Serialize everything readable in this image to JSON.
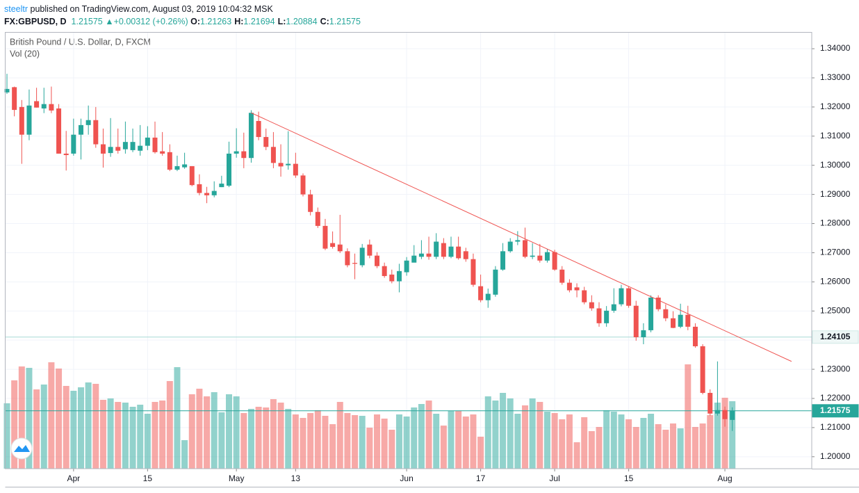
{
  "header": {
    "author": "steeltr",
    "published": "published on TradingView.com, August 03, 2019 10:04:32 MSK",
    "symbol": "FX:GBPUSD, D",
    "last": "1.21575",
    "arrow": "▲",
    "change": "+0.00312 (+0.26%)",
    "ohlc": [
      {
        "label": "O:",
        "value": "1.21263"
      },
      {
        "label": "H:",
        "value": "1.21694"
      },
      {
        "label": "L:",
        "value": "1.20884"
      },
      {
        "label": "C:",
        "value": "1.21575"
      }
    ]
  },
  "chart_data": {
    "type": "candlestick",
    "title": "British Pound / U.S. Dollar, D, FXCM",
    "volume_title": "Vol (20)",
    "up_color": "#26a69a",
    "down_color": "#ef5350",
    "ylim": [
      1.1959,
      1.3455
    ],
    "yticks": [
      {
        "value": 1.2,
        "label": "1.20000"
      },
      {
        "value": 1.21,
        "label": "1.21000"
      },
      {
        "value": 1.22,
        "label": "1.22000"
      },
      {
        "value": 1.23,
        "label": "1.23000"
      },
      {
        "value": 1.24,
        "label": "1.24000"
      },
      {
        "value": 1.25,
        "label": "1.25000"
      },
      {
        "value": 1.26,
        "label": "1.26000"
      },
      {
        "value": 1.27,
        "label": "1.27000"
      },
      {
        "value": 1.28,
        "label": "1.28000"
      },
      {
        "value": 1.29,
        "label": "1.29000"
      },
      {
        "value": 1.3,
        "label": "1.30000"
      },
      {
        "value": 1.31,
        "label": "1.31000"
      },
      {
        "value": 1.32,
        "label": "1.32000"
      },
      {
        "value": 1.33,
        "label": "1.33000"
      },
      {
        "value": 1.34,
        "label": "1.34000"
      }
    ],
    "xticks": [
      {
        "value": 9,
        "label": "Apr"
      },
      {
        "value": 19,
        "label": "15"
      },
      {
        "value": 31,
        "label": "May"
      },
      {
        "value": 39,
        "label": "13"
      },
      {
        "value": 54,
        "label": "Jun"
      },
      {
        "value": 64,
        "label": "17"
      },
      {
        "value": 74,
        "label": "Jul"
      },
      {
        "value": 84,
        "label": "15"
      },
      {
        "value": 97,
        "label": "Aug"
      }
    ],
    "open": [
      1.325,
      1.3268,
      1.32,
      1.3105,
      1.322,
      1.3195,
      1.321,
      1.3195,
      1.304,
      1.304,
      1.3105,
      1.3138,
      1.3155,
      1.3072,
      1.3042,
      1.3063,
      1.3055,
      1.3052,
      1.305,
      1.3067,
      1.3095,
      1.3048,
      1.3045,
      1.2985,
      1.2993,
      1.2997,
      1.2935,
      1.2905,
      1.2897,
      1.2925,
      1.293,
      1.304,
      1.3048,
      1.3025,
      1.3152,
      1.3097,
      1.3063,
      1.3008,
      1.3,
      1.3005,
      1.2965,
      1.29,
      1.284,
      1.2792,
      1.2733,
      1.2728,
      1.2705,
      1.2665,
      1.2657,
      1.2728,
      1.269,
      1.2654,
      1.2625,
      1.2602,
      1.2633,
      1.2666,
      1.2686,
      1.2697,
      1.2686,
      1.2733,
      1.2686,
      1.2721,
      1.2705,
      1.2678,
      1.2585,
      1.2537,
      1.2556,
      1.2642,
      1.2705,
      1.2738,
      1.2743,
      1.2686,
      1.269,
      1.2673,
      1.2702,
      1.2642,
      1.2597,
      1.2581,
      1.2571,
      1.253,
      1.2509,
      1.2458,
      1.2501,
      1.2523,
      1.2578,
      1.2518,
      1.241,
      1.2434,
      1.2546,
      1.2506,
      1.2475,
      1.2446,
      1.2487,
      1.2446,
      1.2379,
      1.2219,
      1.2148,
      1.216,
      1.21263
    ],
    "high": [
      1.3314,
      1.327,
      1.3224,
      1.326,
      1.3266,
      1.3266,
      1.327,
      1.321,
      1.3118,
      1.316,
      1.316,
      1.3205,
      1.32,
      1.3126,
      1.3162,
      1.3126,
      1.315,
      1.3126,
      1.3138,
      1.3134,
      1.315,
      1.3114,
      1.3072,
      1.3033,
      1.3043,
      1.2997,
      1.2969,
      1.2926,
      1.2945,
      1.2964,
      1.3081,
      1.3127,
      1.3112,
      1.3189,
      1.3184,
      1.3126,
      1.3114,
      1.3072,
      1.3117,
      1.3043,
      1.2972,
      1.2916,
      1.2855,
      1.2816,
      1.2773,
      1.283,
      1.2715,
      1.2697,
      1.273,
      1.2745,
      1.2702,
      1.2666,
      1.2642,
      1.2662,
      1.2685,
      1.2726,
      1.2743,
      1.2755,
      1.2767,
      1.275,
      1.2755,
      1.2755,
      1.2717,
      1.2697,
      1.2625,
      1.2577,
      1.2654,
      1.2733,
      1.275,
      1.2774,
      1.2786,
      1.2733,
      1.273,
      1.2712,
      1.271,
      1.2654,
      1.2609,
      1.2595,
      1.2583,
      1.2554,
      1.253,
      1.2517,
      1.2578,
      1.259,
      1.2585,
      1.2535,
      1.2458,
      1.2554,
      1.2554,
      1.2523,
      1.2499,
      1.2525,
      1.2518,
      1.2458,
      1.2386,
      1.2231,
      1.2327,
      1.2172,
      1.21694
    ],
    "low": [
      1.3245,
      1.3168,
      1.3005,
      1.3086,
      1.3198,
      1.3179,
      1.3179,
      1.304,
      1.2982,
      1.3033,
      1.302,
      1.3105,
      1.306,
      1.2992,
      1.3029,
      1.304,
      1.304,
      1.3045,
      1.3033,
      1.3052,
      1.304,
      1.3033,
      1.298,
      1.298,
      1.2988,
      1.2928,
      1.2897,
      1.287,
      1.289,
      1.2925,
      1.2925,
      1.3026,
      1.299,
      1.3009,
      1.3086,
      1.3052,
      1.299,
      1.2961,
      1.2985,
      1.2957,
      1.2893,
      1.2828,
      1.2785,
      1.2709,
      1.2714,
      1.2699,
      1.265,
      1.2609,
      1.265,
      1.2681,
      1.2647,
      1.2614,
      1.2595,
      1.2564,
      1.2621,
      1.2678,
      1.2678,
      1.2676,
      1.2678,
      1.2678,
      1.2681,
      1.2676,
      1.2669,
      1.2583,
      1.253,
      1.2511,
      1.2549,
      1.2638,
      1.27,
      1.2726,
      1.2681,
      1.2678,
      1.2666,
      1.2666,
      1.2638,
      1.259,
      1.2564,
      1.2547,
      1.2523,
      1.2501,
      1.2446,
      1.2446,
      1.2494,
      1.2516,
      1.2511,
      1.2398,
      1.2386,
      1.2427,
      1.2499,
      1.2465,
      1.2441,
      1.2441,
      1.2434,
      1.2374,
      1.2214,
      1.2141,
      1.2141,
      1.2103,
      1.20884
    ],
    "close": [
      1.3262,
      1.319,
      1.3105,
      1.3205,
      1.3198,
      1.321,
      1.3188,
      1.304,
      1.3035,
      1.3105,
      1.3138,
      1.3155,
      1.3072,
      1.304,
      1.3063,
      1.305,
      1.308,
      1.308,
      1.3067,
      1.3095,
      1.3045,
      1.304,
      1.2985,
      1.2997,
      1.3003,
      1.2932,
      1.2905,
      1.2897,
      1.2912,
      1.2937,
      1.304,
      1.3048,
      1.3025,
      1.318,
      1.3097,
      1.3063,
      1.3008,
      1.2996,
      1.3005,
      1.2965,
      1.29,
      1.284,
      1.2792,
      1.2714,
      1.272,
      1.2705,
      1.2657,
      1.2662,
      1.2717,
      1.269,
      1.2654,
      1.262,
      1.2602,
      1.2637,
      1.2673,
      1.269,
      1.2697,
      1.2686,
      1.2738,
      1.2686,
      1.2721,
      1.2681,
      1.2678,
      1.259,
      1.2537,
      1.2559,
      1.2642,
      1.2705,
      1.2738,
      1.2743,
      1.2686,
      1.269,
      1.2673,
      1.2702,
      1.2642,
      1.2597,
      1.2571,
      1.2571,
      1.253,
      1.2509,
      1.2458,
      1.2501,
      1.2523,
      1.2578,
      1.2518,
      1.241,
      1.2434,
      1.2546,
      1.2506,
      1.2475,
      1.2442,
      1.2487,
      1.2446,
      1.2379,
      1.2219,
      1.2148,
      1.216,
      1.2129,
      1.21575
    ],
    "volume": [
      94,
      127,
      147,
      145,
      114,
      121,
      153,
      144,
      119,
      112,
      117,
      124,
      122,
      99,
      101,
      96,
      95,
      89,
      92,
      79,
      96,
      98,
      126,
      146,
      41,
      107,
      115,
      104,
      110,
      81,
      107,
      104,
      80,
      86,
      89,
      88,
      100,
      95,
      86,
      78,
      73,
      80,
      84,
      76,
      64,
      96,
      80,
      77,
      76,
      59,
      78,
      72,
      56,
      78,
      75,
      88,
      93,
      98,
      79,
      62,
      83,
      83,
      75,
      78,
      46,
      104,
      98,
      109,
      101,
      79,
      91,
      101,
      96,
      82,
      80,
      71,
      78,
      38,
      74,
      54,
      60,
      84,
      82,
      78,
      71,
      60,
      73,
      79,
      64,
      56,
      65,
      58,
      150,
      60,
      65,
      77,
      95,
      102,
      97
    ],
    "trendline": {
      "color": "#ef5350",
      "start": [
        33,
        1.318
      ],
      "end": [
        106,
        1.2327
      ]
    },
    "price_lines": [
      {
        "value": 1.24105,
        "color": "#a7d9d5",
        "filled": false
      },
      {
        "value": 1.21575,
        "color": "#26a69a",
        "filled": true
      }
    ]
  }
}
